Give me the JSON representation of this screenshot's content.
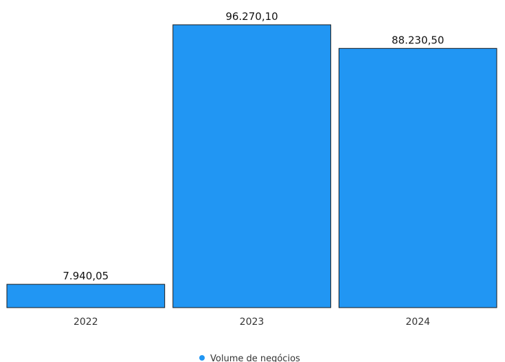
{
  "chart_data": {
    "type": "bar",
    "categories": [
      "2022",
      "2023",
      "2024"
    ],
    "series": [
      {
        "name": "Volume de negócios",
        "values": [
          7940.05,
          96270.1,
          88230.5
        ],
        "value_labels": [
          "7.940,05",
          "96.270,10",
          "88.230,50"
        ],
        "color": "#2196f3"
      }
    ],
    "title": "",
    "xlabel": "",
    "ylabel": "",
    "ylim": [
      0,
      96270.1
    ],
    "grid": false,
    "legend_position": "bottom-center"
  }
}
